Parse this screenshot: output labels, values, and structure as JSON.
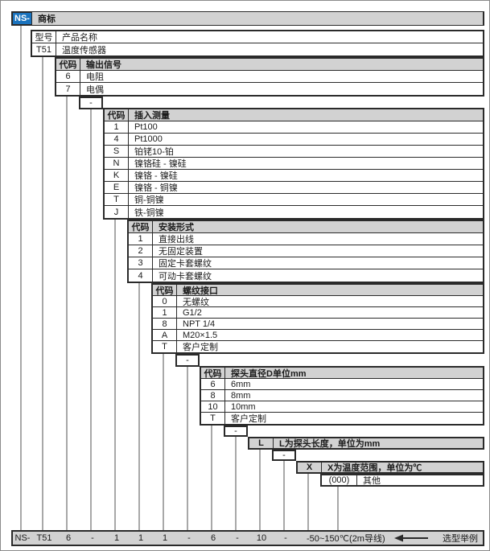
{
  "brand": {
    "code": "NS-",
    "label": "商标"
  },
  "dash": "-",
  "tables": {
    "model": {
      "rows": [
        [
          "型号",
          "产品名称"
        ],
        [
          "T51",
          "温度传感器"
        ]
      ]
    },
    "output_signal": {
      "rows": [
        [
          "代码",
          "输出信号"
        ],
        [
          "6",
          "电阻"
        ],
        [
          "7",
          "电偶"
        ]
      ]
    },
    "insertion": {
      "rows": [
        [
          "代码",
          "插入测量"
        ],
        [
          "1",
          "Pt100"
        ],
        [
          "4",
          "Pt1000"
        ],
        [
          "S",
          "铂铑10-铂"
        ],
        [
          "N",
          "镍铬硅 - 镍硅"
        ],
        [
          "K",
          "镍铬 - 镍硅"
        ],
        [
          "E",
          "镍铬 - 铜镍"
        ],
        [
          "T",
          "铜-铜镍"
        ],
        [
          "J",
          "铁-铜镍"
        ]
      ]
    },
    "mounting": {
      "rows": [
        [
          "代码",
          "安装形式"
        ],
        [
          "1",
          "直接出线"
        ],
        [
          "2",
          "无固定装置"
        ],
        [
          "3",
          "固定卡套螺纹"
        ],
        [
          "4",
          "可动卡套螺纹"
        ]
      ]
    },
    "thread": {
      "rows": [
        [
          "代码",
          "螺纹接口"
        ],
        [
          "0",
          "无螺纹"
        ],
        [
          "1",
          "G1/2"
        ],
        [
          "8",
          "NPT 1/4"
        ],
        [
          "A",
          "M20×1.5"
        ],
        [
          "T",
          "客户定制"
        ]
      ]
    },
    "diameter": {
      "rows": [
        [
          "代码",
          "探头直径D单位mm"
        ],
        [
          "6",
          "6mm"
        ],
        [
          "8",
          "8mm"
        ],
        [
          "10",
          "10mm"
        ],
        [
          "T",
          "客户定制"
        ]
      ]
    }
  },
  "banners": {
    "length": {
      "code": "L",
      "label": "L为探头长度，单位为mm"
    },
    "temperature": {
      "code": "X",
      "label": "X为温度范围，单位为℃"
    },
    "other": {
      "code": "(000)",
      "label": "其他"
    }
  },
  "example_bar": {
    "items": [
      "NS-",
      "T51",
      "6",
      "-",
      "1",
      "1",
      "1",
      "-",
      "6",
      "-",
      "10",
      "-",
      "-50~150℃(2m导线)"
    ],
    "label": "选型举例"
  },
  "colors": {
    "brand_blue": "#1a73be",
    "header_gray": "#d2d2d2",
    "connector_gray": "#a8a8a8"
  }
}
